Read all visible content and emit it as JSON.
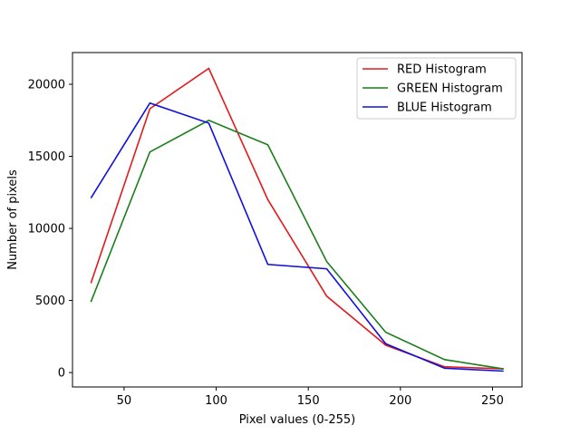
{
  "chart_data": {
    "type": "line",
    "title": "",
    "xlabel": "Pixel values (0-255)",
    "ylabel": "Number of pixels",
    "x": [
      32,
      64,
      96,
      128,
      160,
      192,
      224,
      256
    ],
    "xlim": [
      22,
      266
    ],
    "ylim": [
      -1000,
      22200
    ],
    "xticks": [
      50,
      100,
      150,
      200,
      250
    ],
    "yticks": [
      0,
      5000,
      10000,
      15000,
      20000
    ],
    "grid": false,
    "legend_position": "top-right",
    "series": [
      {
        "name": "RED Histogram",
        "color": "#e31a1c",
        "values": [
          6200,
          18300,
          21100,
          12000,
          5300,
          1900,
          400,
          250
        ]
      },
      {
        "name": "GREEN Histogram",
        "color": "#1a7f1a",
        "values": [
          4900,
          15300,
          17500,
          15800,
          7700,
          2800,
          900,
          250
        ]
      },
      {
        "name": "BLUE Histogram",
        "color": "#1010dd",
        "values": [
          12100,
          18700,
          17300,
          7500,
          7200,
          2000,
          300,
          100
        ]
      }
    ]
  }
}
